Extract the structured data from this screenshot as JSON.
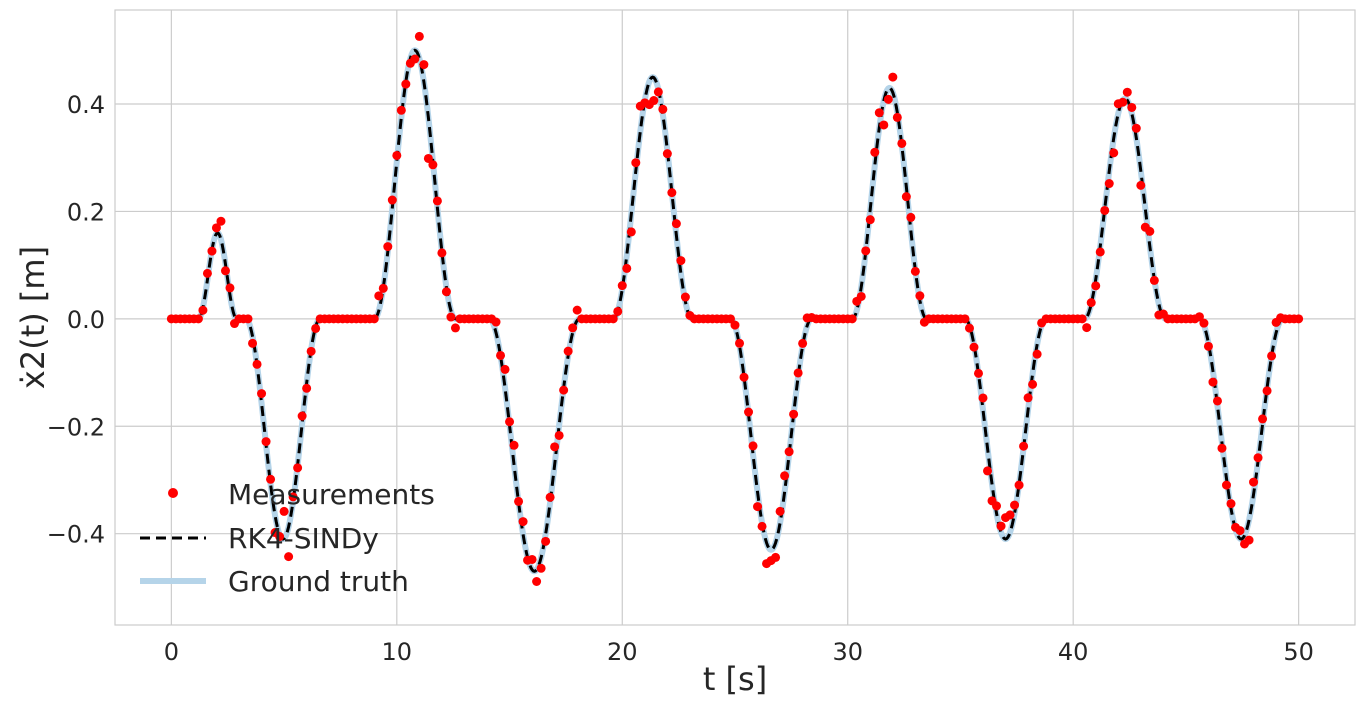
{
  "chart_data": {
    "type": "line",
    "xlabel": "t [s]",
    "ylabel": "ẋ2(t) [m]",
    "xlim": [
      -2.5,
      52.5
    ],
    "ylim": [
      -0.57,
      0.575
    ],
    "xticks": [
      0,
      10,
      20,
      30,
      40,
      50
    ],
    "xtick_labels": [
      "0",
      "10",
      "20",
      "30",
      "40",
      "50"
    ],
    "yticks": [
      -0.4,
      -0.2,
      0.0,
      0.2,
      0.4
    ],
    "ytick_labels": [
      "−0.4",
      "−0.2",
      "0.0",
      "0.2",
      "0.4"
    ],
    "grid": true,
    "legend_placement": "lower-left",
    "model": {
      "description": "piecewise signal: zero plateaus joined by smooth half-sine lobes",
      "segments": [
        {
          "start": 0.0,
          "end": 1.2,
          "amp": 0.0
        },
        {
          "start": 1.2,
          "end": 2.9,
          "amp": 0.16
        },
        {
          "start": 2.9,
          "end": 3.3,
          "amp": 0.0
        },
        {
          "start": 3.3,
          "end": 6.6,
          "amp": -0.41
        },
        {
          "start": 6.6,
          "end": 9.0,
          "amp": 0.0
        },
        {
          "start": 9.0,
          "end": 12.6,
          "amp": 0.5
        },
        {
          "start": 12.6,
          "end": 14.1,
          "amp": 0.0
        },
        {
          "start": 14.1,
          "end": 18.1,
          "amp": -0.47
        },
        {
          "start": 18.1,
          "end": 19.6,
          "amp": 0.0
        },
        {
          "start": 19.6,
          "end": 23.1,
          "amp": 0.45
        },
        {
          "start": 23.1,
          "end": 24.8,
          "amp": 0.0
        },
        {
          "start": 24.8,
          "end": 28.4,
          "amp": -0.43
        },
        {
          "start": 28.4,
          "end": 30.2,
          "amp": 0.0
        },
        {
          "start": 30.2,
          "end": 33.5,
          "amp": 0.43
        },
        {
          "start": 33.5,
          "end": 35.2,
          "amp": 0.0
        },
        {
          "start": 35.2,
          "end": 38.8,
          "amp": -0.41
        },
        {
          "start": 38.8,
          "end": 40.5,
          "amp": 0.0
        },
        {
          "start": 40.5,
          "end": 44.1,
          "amp": 0.41
        },
        {
          "start": 44.1,
          "end": 45.6,
          "amp": 0.0
        },
        {
          "start": 45.6,
          "end": 49.3,
          "amp": -0.41
        },
        {
          "start": 49.3,
          "end": 50.0,
          "amp": 0.0
        }
      ]
    },
    "series": [
      {
        "name": "Measurements",
        "kind": "scatter",
        "color": "#ff0000",
        "sample_step": 0.2,
        "noise_seed": 7,
        "noise_std": 0.02
      },
      {
        "name": "RK4-SINDy",
        "kind": "line",
        "style": "dashed",
        "color": "#000000",
        "width": 3
      },
      {
        "name": "Ground truth",
        "kind": "line",
        "style": "solid",
        "color": "#b5d4e9",
        "width": 6
      }
    ],
    "legend": [
      "Measurements",
      "RK4-SINDy",
      "Ground truth"
    ]
  }
}
